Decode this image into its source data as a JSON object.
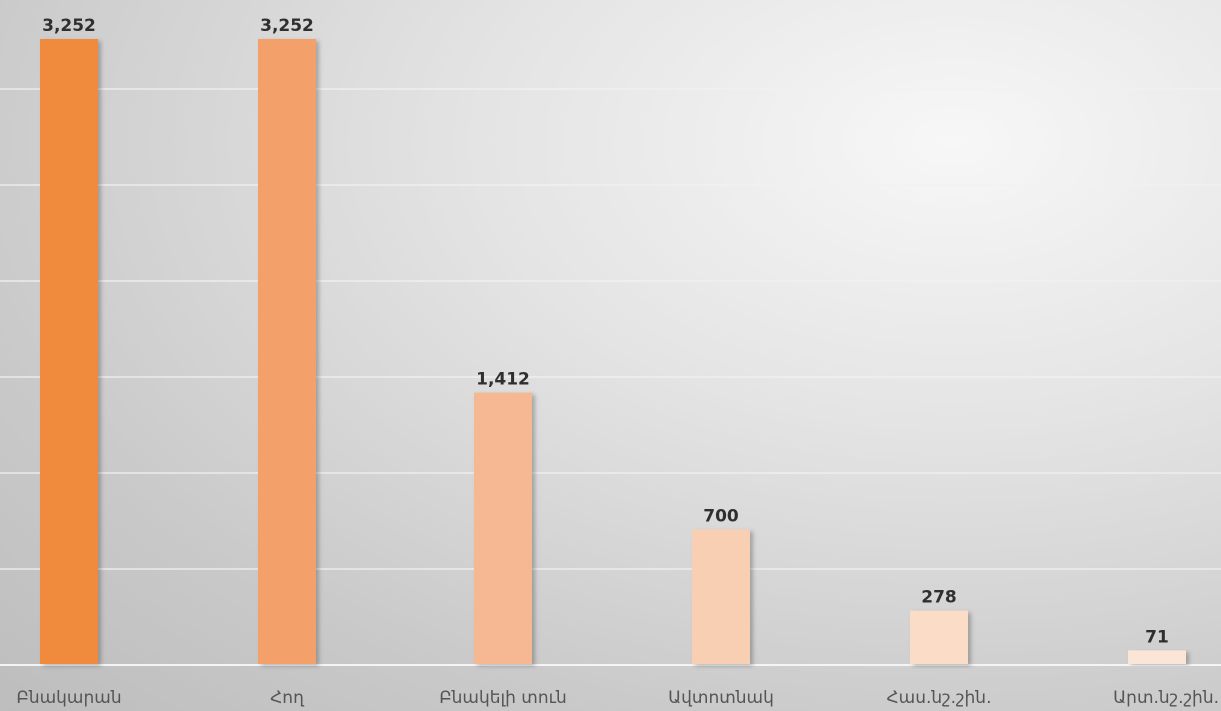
{
  "chart_data": {
    "type": "bar",
    "categories": [
      "Բնակարան",
      "Հող",
      "Բնակելի տուն",
      "Ավտոտնակ",
      "Հաս.նշ.շին.",
      "Արտ.նշ.շին."
    ],
    "values": [
      3252,
      3252,
      1412,
      700,
      278,
      71
    ],
    "value_labels": [
      "3,252",
      "3,252",
      "1,412",
      "700",
      "278",
      "71"
    ],
    "title": "",
    "xlabel": "",
    "ylabel": "",
    "ylim": [
      0,
      3252
    ],
    "grid": true,
    "legend": "none",
    "colors": [
      "#f08a3c",
      "#f3a06a",
      "#f5b893",
      "#f8cfb2",
      "#fadcc7",
      "#fbe5d6"
    ],
    "label_color": "#2f2f2f",
    "axis_label_color": "#555555"
  }
}
